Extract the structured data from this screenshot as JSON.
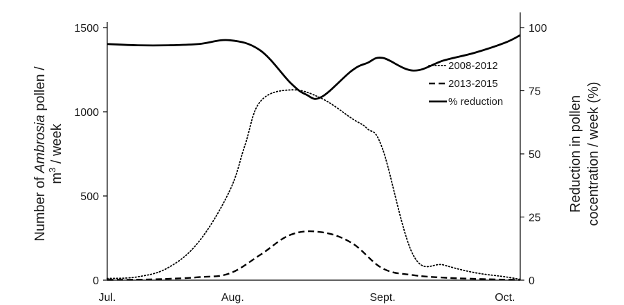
{
  "chart_data": {
    "type": "line",
    "x_ticks": [
      "Jul.",
      "Aug.",
      "Sept.",
      "Oct."
    ],
    "left_axis": {
      "label_line1_prefix": "Number of ",
      "label_line1_italic": "Ambrosia",
      "label_line1_suffix": " pollen /",
      "label_line2_prefix": "m",
      "label_line2_sup": "3",
      "label_line2_suffix": " / week",
      "range": [
        0,
        1500
      ],
      "ticks": [
        0,
        500,
        1000,
        1500
      ]
    },
    "right_axis": {
      "label_line1": "Reduction in pollen",
      "label_line2": "cocentration / week (%)",
      "range": [
        0,
        100
      ],
      "ticks": [
        0,
        25,
        50,
        75,
        100
      ]
    },
    "x_range": [
      0,
      13.5
    ],
    "series": [
      {
        "name": "2008-2012",
        "axis": "left",
        "style": "dotted",
        "x": [
          0,
          1,
          2,
          3,
          4,
          4.5,
          5,
          6,
          7,
          8,
          8.5,
          9,
          10,
          11,
          12,
          13,
          13.5
        ],
        "values": [
          10,
          20,
          75,
          230,
          530,
          800,
          1060,
          1130,
          1080,
          960,
          900,
          780,
          150,
          90,
          45,
          20,
          5
        ]
      },
      {
        "name": "2013-2015",
        "axis": "left",
        "style": "dashed",
        "x": [
          0,
          1,
          2,
          3,
          4,
          5,
          6,
          7,
          8,
          9,
          10,
          11,
          12,
          13,
          13.5
        ],
        "values": [
          2,
          3,
          8,
          18,
          40,
          150,
          270,
          285,
          220,
          70,
          30,
          15,
          8,
          3,
          2
        ]
      },
      {
        "name": "% reduction",
        "axis": "right",
        "style": "solid",
        "x": [
          0,
          1,
          2,
          3,
          4,
          5,
          6,
          6.5,
          7,
          8,
          8.5,
          9,
          10,
          11,
          12,
          13,
          13.5
        ],
        "values": [
          93.5,
          93,
          93,
          93.5,
          95,
          91,
          78,
          73.5,
          72.5,
          83,
          86,
          88,
          83,
          87,
          90,
          94,
          97
        ]
      }
    ],
    "legend_position": "right-middle",
    "grid": false
  }
}
